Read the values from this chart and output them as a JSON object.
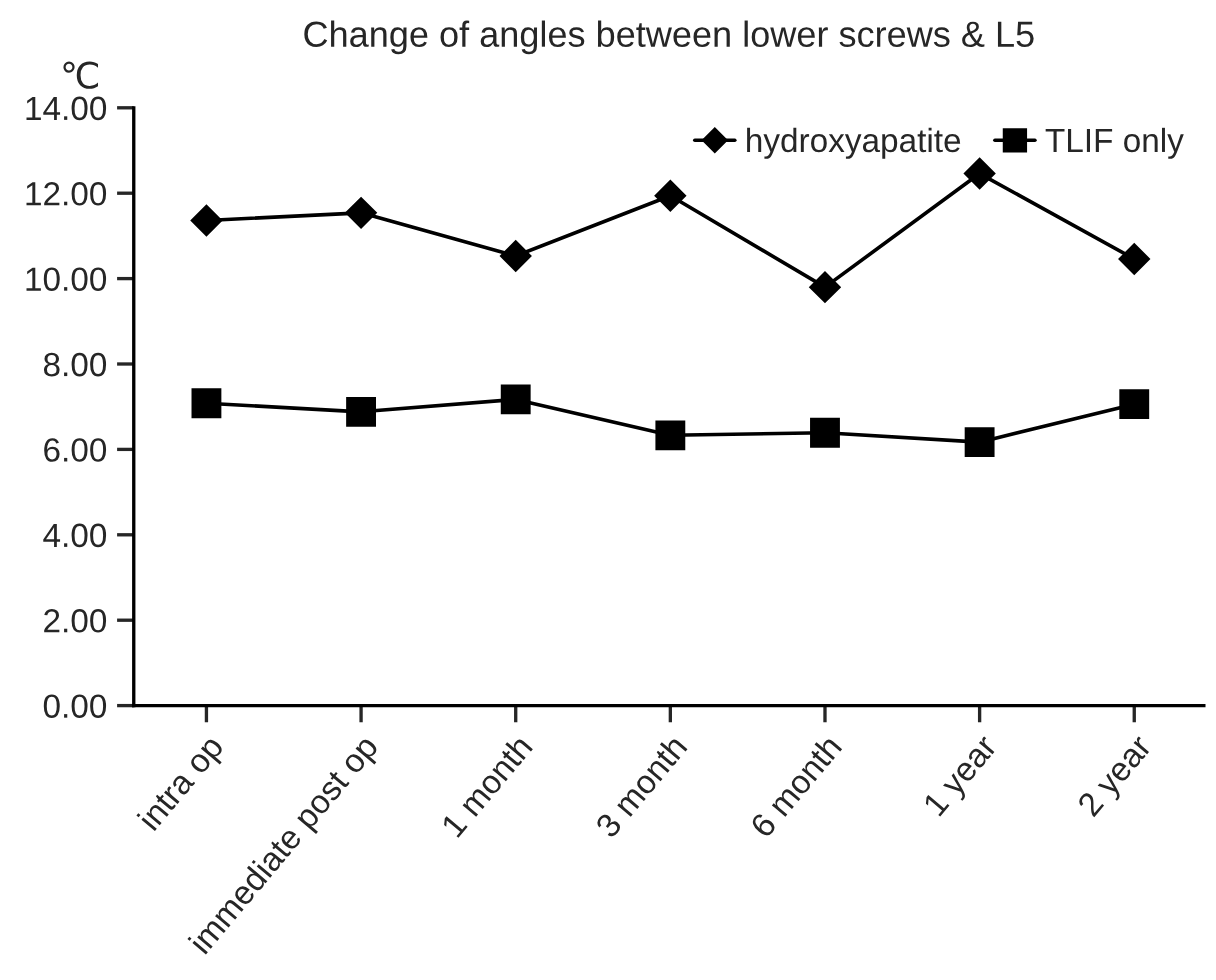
{
  "chart_data": {
    "type": "line",
    "title": "Change of angles between lower screws & L5",
    "ylabel": "℃",
    "categories": [
      "intra op",
      "immediate post op",
      "1 month",
      "3 month",
      "6 month",
      "1 year",
      "2 year"
    ],
    "series": [
      {
        "name": "hydroxyapatite",
        "color": "#000000",
        "marker": "diamond",
        "values": [
          11.36,
          11.54,
          10.53,
          11.94,
          9.8,
          12.46,
          10.46
        ]
      },
      {
        "name": "TLIF only",
        "color": "#000000",
        "marker": "square",
        "values": [
          7.08,
          6.88,
          7.17,
          6.33,
          6.39,
          6.17,
          7.06
        ]
      }
    ],
    "ylim": [
      0,
      14
    ],
    "yticks": [
      {
        "value": 0,
        "label": "0.00"
      },
      {
        "value": 2,
        "label": "2.00"
      },
      {
        "value": 4,
        "label": "4.00"
      },
      {
        "value": 6,
        "label": "6.00"
      },
      {
        "value": 8,
        "label": "8.00"
      },
      {
        "value": 10,
        "label": "10.00"
      },
      {
        "value": 12,
        "label": "12.00"
      },
      {
        "value": 14,
        "label": "14.00"
      }
    ],
    "grid": false,
    "legend": "top right",
    "line_style": "solid"
  }
}
